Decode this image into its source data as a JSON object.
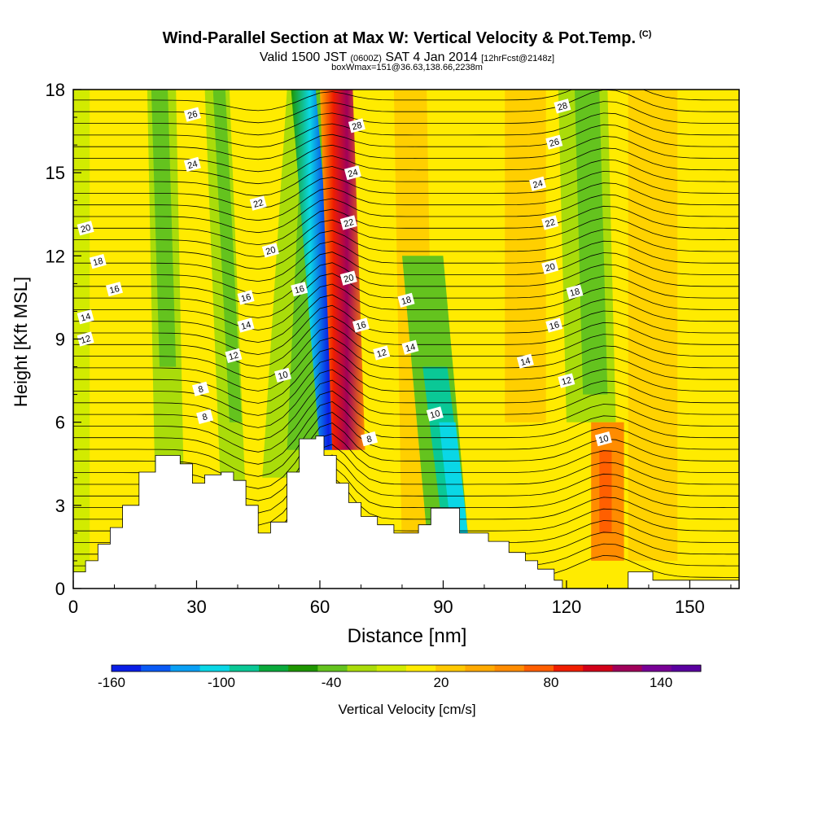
{
  "title": "Wind-Parallel Section at Max W: Vertical Velocity & Pot.Temp.",
  "title_unit": "(C)",
  "subtitle_main": "Valid 1500 JST",
  "subtitle_utc": "(0600Z)",
  "subtitle_date": "SAT 4 Jan 2014",
  "subtitle_fcst": "[12hrFcst@2148z]",
  "subtitle2": "boxWmax=151@36.63,138.66,2238m",
  "chart_data": {
    "type": "heatmap",
    "xlabel": "Distance [nm]",
    "ylabel": "Height [Kft MSL]",
    "xlim": [
      0,
      162
    ],
    "ylim": [
      0,
      18
    ],
    "xticks": [
      0,
      30,
      60,
      90,
      120,
      150
    ],
    "yticks": [
      0,
      3,
      6,
      9,
      12,
      15,
      18
    ],
    "colorbar": {
      "label": "Vertical Velocity [cm/s]",
      "tick_labels": [
        "-160",
        "-100",
        "-40",
        "20",
        "80",
        "140"
      ],
      "colors": [
        "#0a1ee6",
        "#0a5af5",
        "#0aa0f5",
        "#0ad7e6",
        "#0ac896",
        "#0aaa3c",
        "#1e9600",
        "#64c31e",
        "#aadc0a",
        "#d2eb00",
        "#ffeb00",
        "#ffc800",
        "#ffaa00",
        "#ff8c00",
        "#ff5f00",
        "#f01e00",
        "#d20019",
        "#a0005a",
        "#780096",
        "#5a00a0"
      ]
    },
    "terrain": [
      [
        0,
        0.6
      ],
      [
        3,
        0.6
      ],
      [
        3,
        1.0
      ],
      [
        6,
        1.0
      ],
      [
        6,
        1.6
      ],
      [
        9,
        1.6
      ],
      [
        9,
        2.2
      ],
      [
        12,
        2.2
      ],
      [
        12,
        3.0
      ],
      [
        16,
        3.0
      ],
      [
        16,
        4.2
      ],
      [
        20,
        4.2
      ],
      [
        20,
        4.8
      ],
      [
        26,
        4.8
      ],
      [
        26,
        4.5
      ],
      [
        29,
        4.5
      ],
      [
        29,
        3.8
      ],
      [
        32,
        3.8
      ],
      [
        32,
        4.1
      ],
      [
        36,
        4.1
      ],
      [
        36,
        4.2
      ],
      [
        39,
        4.2
      ],
      [
        39,
        3.9
      ],
      [
        42,
        3.9
      ],
      [
        42,
        3.0
      ],
      [
        45,
        3.0
      ],
      [
        45,
        2.0
      ],
      [
        48,
        2.0
      ],
      [
        48,
        2.4
      ],
      [
        52,
        2.4
      ],
      [
        52,
        4.2
      ],
      [
        55,
        4.2
      ],
      [
        55,
        5.4
      ],
      [
        59,
        5.4
      ],
      [
        59,
        5.5
      ],
      [
        61,
        5.5
      ],
      [
        61,
        4.8
      ],
      [
        64,
        4.8
      ],
      [
        64,
        3.8
      ],
      [
        67,
        3.8
      ],
      [
        67,
        3.1
      ],
      [
        70,
        3.1
      ],
      [
        70,
        2.6
      ],
      [
        74,
        2.6
      ],
      [
        74,
        2.3
      ],
      [
        78,
        2.3
      ],
      [
        78,
        2.0
      ],
      [
        84,
        2.0
      ],
      [
        84,
        2.3
      ],
      [
        87,
        2.3
      ],
      [
        87,
        2.9
      ],
      [
        94,
        2.9
      ],
      [
        94,
        2.0
      ],
      [
        101,
        2.0
      ],
      [
        101,
        1.7
      ],
      [
        106,
        1.7
      ],
      [
        106,
        1.3
      ],
      [
        110,
        1.3
      ],
      [
        110,
        1.0
      ],
      [
        113,
        1.0
      ],
      [
        113,
        0.7
      ],
      [
        117,
        0.7
      ],
      [
        117,
        0.3
      ],
      [
        119,
        0.3
      ],
      [
        119,
        0.0
      ],
      [
        135,
        0.0
      ],
      [
        135,
        0.6
      ],
      [
        141,
        0.6
      ],
      [
        141,
        0.3
      ],
      [
        162,
        0.3
      ]
    ],
    "contour_labels": [
      {
        "text": "26",
        "x": 29,
        "y": 17.1
      },
      {
        "text": "24",
        "x": 29,
        "y": 15.3
      },
      {
        "text": "22",
        "x": 45,
        "y": 13.9
      },
      {
        "text": "20",
        "x": 48,
        "y": 12.2
      },
      {
        "text": "20",
        "x": 3,
        "y": 13.0
      },
      {
        "text": "18",
        "x": 6,
        "y": 11.8
      },
      {
        "text": "16",
        "x": 10,
        "y": 10.8
      },
      {
        "text": "14",
        "x": 3,
        "y": 9.8
      },
      {
        "text": "12",
        "x": 3,
        "y": 9.0
      },
      {
        "text": "16",
        "x": 55,
        "y": 10.8
      },
      {
        "text": "16",
        "x": 42,
        "y": 10.5
      },
      {
        "text": "14",
        "x": 42,
        "y": 9.5
      },
      {
        "text": "12",
        "x": 39,
        "y": 8.4
      },
      {
        "text": "10",
        "x": 51,
        "y": 7.7
      },
      {
        "text": "8",
        "x": 31,
        "y": 7.2
      },
      {
        "text": "8",
        "x": 32,
        "y": 6.2
      },
      {
        "text": "28",
        "x": 69,
        "y": 16.7
      },
      {
        "text": "24",
        "x": 68,
        "y": 15.0
      },
      {
        "text": "22",
        "x": 67,
        "y": 13.2
      },
      {
        "text": "20",
        "x": 67,
        "y": 11.2
      },
      {
        "text": "16",
        "x": 70,
        "y": 9.5
      },
      {
        "text": "12",
        "x": 75,
        "y": 8.5
      },
      {
        "text": "8",
        "x": 72,
        "y": 5.4
      },
      {
        "text": "18",
        "x": 81,
        "y": 10.4
      },
      {
        "text": "14",
        "x": 82,
        "y": 8.7
      },
      {
        "text": "10",
        "x": 88,
        "y": 6.3
      },
      {
        "text": "28",
        "x": 119,
        "y": 17.4
      },
      {
        "text": "26",
        "x": 117,
        "y": 16.1
      },
      {
        "text": "24",
        "x": 113,
        "y": 14.6
      },
      {
        "text": "22",
        "x": 116,
        "y": 13.2
      },
      {
        "text": "20",
        "x": 116,
        "y": 11.6
      },
      {
        "text": "18",
        "x": 122,
        "y": 10.7
      },
      {
        "text": "16",
        "x": 117,
        "y": 9.5
      },
      {
        "text": "14",
        "x": 110,
        "y": 8.2
      },
      {
        "text": "12",
        "x": 120,
        "y": 7.5
      },
      {
        "text": "10",
        "x": 129,
        "y": 5.4
      }
    ]
  }
}
